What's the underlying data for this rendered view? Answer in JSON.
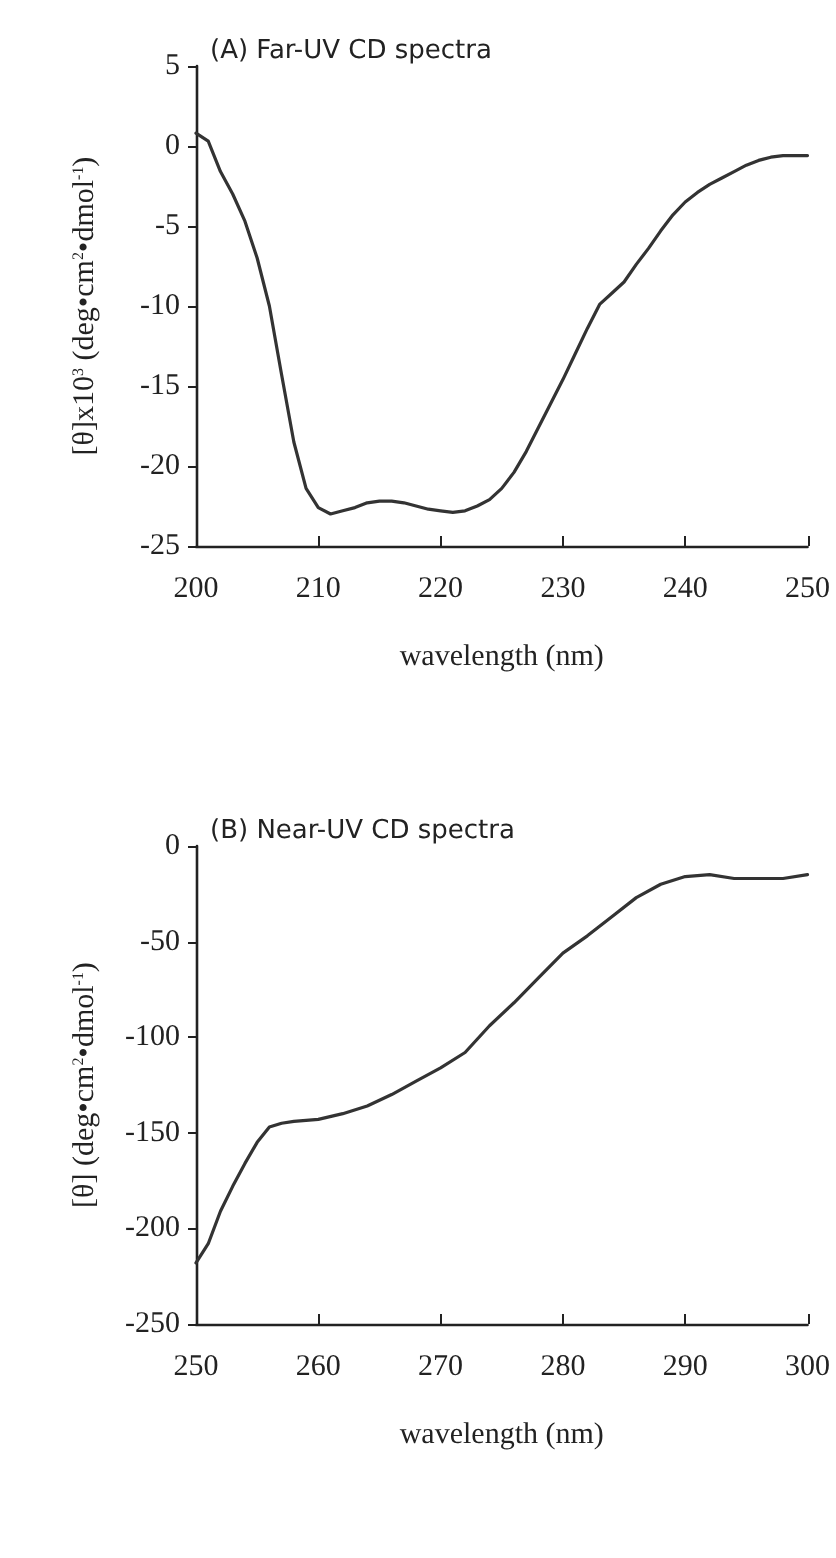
{
  "chart_data": [
    {
      "type": "line",
      "title": "(A) Far-UV CD spectra",
      "xlabel": "wavelength (nm)",
      "ylabel": "[θ]x10$^{3}$ (deg•cm$^{2}$•dmol$^{-1}$)",
      "xlim": [
        200,
        250
      ],
      "xticks": [
        200,
        210,
        220,
        230,
        240,
        250
      ],
      "ylim": [
        -25,
        5
      ],
      "yticks": [
        -25,
        -20,
        -15,
        -10,
        -5,
        0,
        5
      ],
      "marker": "none",
      "line_style": "solid",
      "series": [
        {
          "color": "#333333",
          "x": [
            200,
            201,
            202,
            203,
            204,
            205,
            206,
            207,
            208,
            209,
            210,
            211,
            212,
            213,
            214,
            215,
            216,
            217,
            218,
            219,
            220,
            221,
            222,
            223,
            224,
            225,
            226,
            227,
            228,
            229,
            230,
            231,
            232,
            233,
            234,
            235,
            236,
            237,
            238,
            239,
            240,
            241,
            242,
            243,
            244,
            245,
            246,
            247,
            248,
            249,
            250
          ],
          "values": [
            0.8,
            0.3,
            -1.6,
            -3,
            -4.7,
            -7,
            -10,
            -14.3,
            -18.5,
            -21.4,
            -22.6,
            -23,
            -22.8,
            -22.6,
            -22.3,
            -22.2,
            -22.2,
            -22.3,
            -22.5,
            -22.7,
            -22.8,
            -22.9,
            -22.8,
            -22.5,
            -22.1,
            -21.4,
            -20.4,
            -19.1,
            -17.6,
            -16.1,
            -14.6,
            -13,
            -11.4,
            -9.9,
            -9.2,
            -8.5,
            -7.4,
            -6.4,
            -5.3,
            -4.3,
            -3.5,
            -2.9,
            -2.4,
            -2,
            -1.6,
            -1.2,
            -0.9,
            -0.7,
            -0.6,
            -0.6,
            -0.6
          ]
        }
      ]
    },
    {
      "type": "line",
      "title": "(B) Near-UV CD spectra",
      "xlabel": "wavelength (nm)",
      "ylabel": "[θ] (deg•cm$^{2}$•dmol$^{-1}$)",
      "xlim": [
        250,
        300
      ],
      "xticks": [
        250,
        260,
        270,
        280,
        290,
        300
      ],
      "ylim": [
        -250,
        0
      ],
      "yticks": [
        -250,
        -200,
        -150,
        -100,
        -50,
        0
      ],
      "marker": "none",
      "line_style": "solid",
      "series": [
        {
          "color": "#333333",
          "x": [
            250,
            251,
            252,
            253,
            254,
            255,
            256,
            257,
            258,
            260,
            262,
            264,
            266,
            268,
            270,
            272,
            274,
            276,
            278,
            280,
            282,
            284,
            286,
            288,
            290,
            292,
            294,
            296,
            298,
            300
          ],
          "values": [
            -218,
            -208,
            -191,
            -178,
            -166,
            -155,
            -147,
            -145,
            -144,
            -143,
            -140,
            -136,
            -130,
            -123,
            -116,
            -108,
            -94,
            -82,
            -69,
            -56,
            -47,
            -37,
            -27,
            -20,
            -16,
            -15,
            -17,
            -17,
            -17,
            -15
          ]
        }
      ]
    }
  ]
}
